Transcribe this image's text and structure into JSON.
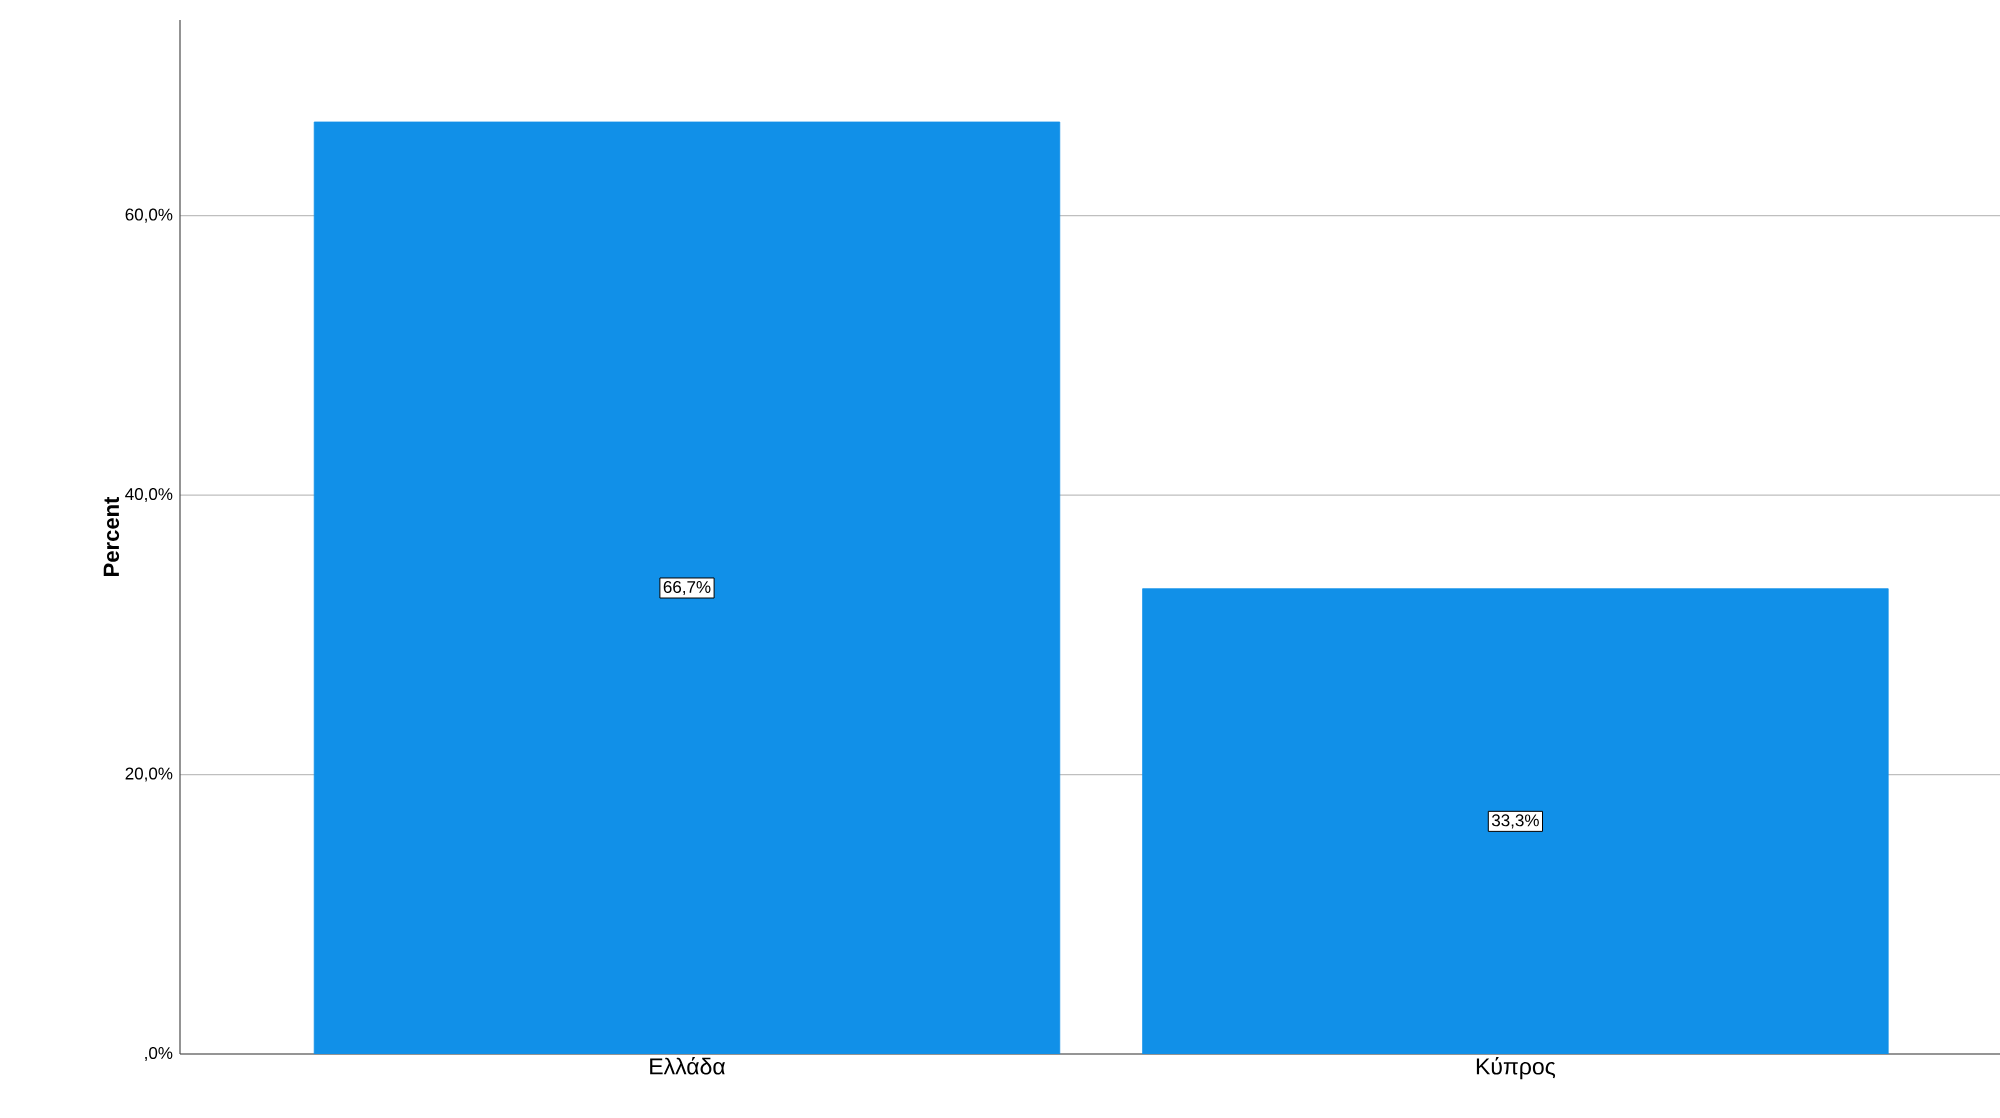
{
  "chart_data": {
    "type": "bar",
    "ylabel": "Percent",
    "categories": [
      "Ελλάδα",
      "Κύπρος"
    ],
    "values": [
      66.7,
      33.3
    ],
    "color": "#1190e8",
    "value_labels": [
      "66,7%",
      "33,3%"
    ],
    "ylim": [
      0,
      74
    ],
    "yticks": [
      {
        "value": 0,
        "label": ",0%"
      },
      {
        "value": 20,
        "label": "20,0%"
      },
      {
        "value": 40,
        "label": "40,0%"
      },
      {
        "value": 60,
        "label": "60,0%"
      }
    ],
    "grid": "y"
  }
}
